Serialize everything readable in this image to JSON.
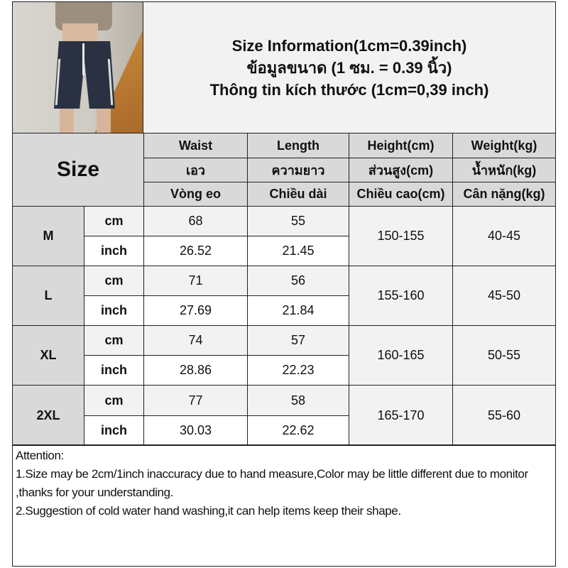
{
  "header": {
    "title_lines": [
      "Size Information(1cm=0.39inch)",
      "ข้อมูลขนาด (1 ซม. = 0.39 นิ้ว)",
      "Thông tin kích thước (1cm=0,39 inch)"
    ],
    "photo": "model wearing navy striped shorts on staircase"
  },
  "table": {
    "size_label": "Size",
    "columns": [
      {
        "en": "Waist",
        "th": "เอว",
        "vi": "Vòng eo"
      },
      {
        "en": "Length",
        "th": "ความยาว",
        "vi": "Chiều dài"
      },
      {
        "en": "Height(cm)",
        "th": "ส่วนสูง(cm)",
        "vi": "Chiều cao(cm)"
      },
      {
        "en": "Weight(kg)",
        "th": "น้ำหนัก(kg)",
        "vi": "Cân nặng(kg)"
      }
    ],
    "unit_cm": "cm",
    "unit_inch": "inch",
    "rows": [
      {
        "size": "M",
        "cm": [
          "68",
          "55"
        ],
        "inch": [
          "26.52",
          "21.45"
        ],
        "height": "150-155",
        "weight": "40-45"
      },
      {
        "size": "L",
        "cm": [
          "71",
          "56"
        ],
        "inch": [
          "27.69",
          "21.84"
        ],
        "height": "155-160",
        "weight": "45-50"
      },
      {
        "size": "XL",
        "cm": [
          "74",
          "57"
        ],
        "inch": [
          "28.86",
          "22.23"
        ],
        "height": "160-165",
        "weight": "50-55"
      },
      {
        "size": "2XL",
        "cm": [
          "77",
          "58"
        ],
        "inch": [
          "30.03",
          "22.62"
        ],
        "height": "165-170",
        "weight": "55-60"
      }
    ]
  },
  "attention": {
    "title": "Attention:",
    "notes": [
      "1.Size may be 2cm/1inch inaccuracy due to hand measure,Color may be little different due to monitor ,thanks for your understanding.",
      "2.Suggestion of cold water hand washing,it can help items keep their shape."
    ]
  },
  "colors": {
    "header_bg": "#d9d9d9",
    "light_bg": "#f2f2f2",
    "border": "#222222"
  }
}
